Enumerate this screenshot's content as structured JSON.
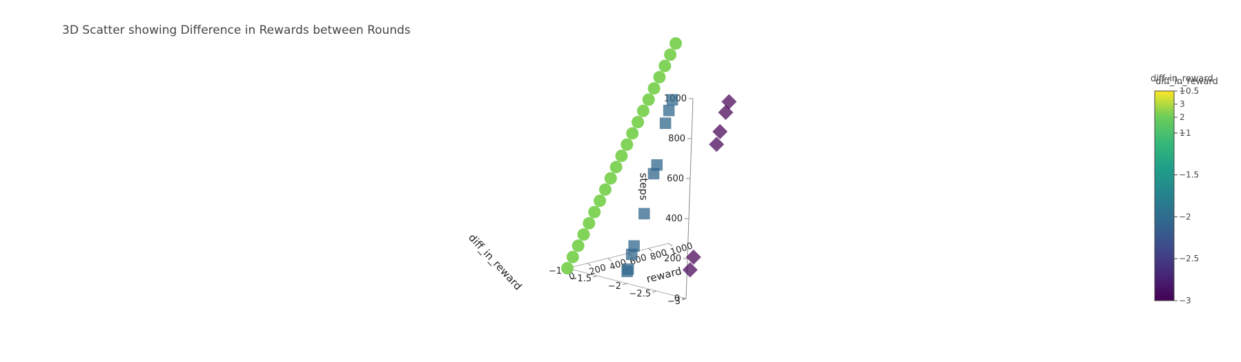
{
  "chart_data": {
    "type": "scatter3d",
    "title": "3D Scatter showing Difference in Rewards between Rounds",
    "axes": {
      "x": {
        "title": "reward",
        "ticks": [
          "0",
          "200",
          "400",
          "600",
          "800",
          "1000"
        ],
        "range": [
          0,
          1000
        ]
      },
      "y": {
        "title": "diff_in_reward",
        "ticks": [
          "−3",
          "−2.5",
          "−2",
          "−1.5",
          "−1"
        ],
        "range": [
          -3,
          -1
        ]
      },
      "z": {
        "title": "steps",
        "ticks": [
          "0",
          "200",
          "400",
          "600",
          "800",
          "1000"
        ],
        "range": [
          0,
          1000
        ]
      }
    },
    "colorscale": "Viridis",
    "colorbars": [
      {
        "title": "diff_in_reward",
        "range": [
          -3,
          -0.5
        ],
        "ticks": [
          {
            "value": -0.5,
            "label": "−0.5"
          },
          {
            "value": -1,
            "label": "−1"
          },
          {
            "value": -1.5,
            "label": "−1.5"
          },
          {
            "value": -2,
            "label": "−2"
          },
          {
            "value": -2.5,
            "label": "−2.5"
          },
          {
            "value": -3,
            "label": "−3"
          }
        ]
      },
      {
        "title": "diff_in_reward",
        "ticks_upper": [
          "1",
          "3",
          "2",
          "1"
        ]
      }
    ],
    "series": [
      {
        "marker": "circle",
        "color": "#7ad151",
        "note": "diff_in_reward = -1",
        "points": [
          [
            0,
            -1,
            0
          ],
          [
            50,
            -1,
            50
          ],
          [
            100,
            -1,
            100
          ],
          [
            150,
            -1,
            150
          ],
          [
            200,
            -1,
            200
          ],
          [
            250,
            -1,
            250
          ],
          [
            300,
            -1,
            300
          ],
          [
            350,
            -1,
            350
          ],
          [
            400,
            -1,
            400
          ],
          [
            450,
            -1,
            450
          ],
          [
            500,
            -1,
            500
          ],
          [
            550,
            -1,
            550
          ],
          [
            600,
            -1,
            600
          ],
          [
            650,
            -1,
            650
          ],
          [
            700,
            -1,
            700
          ],
          [
            750,
            -1,
            750
          ],
          [
            800,
            -1,
            800
          ],
          [
            850,
            -1,
            850
          ],
          [
            900,
            -1,
            900
          ],
          [
            950,
            -1,
            950
          ],
          [
            1000,
            -1,
            1000
          ]
        ]
      },
      {
        "marker": "square",
        "color": "#31688e",
        "note": "diff_in_reward = -2",
        "points": [
          [
            0,
            -2,
            60
          ],
          [
            10,
            -2,
            70
          ],
          [
            40,
            -2,
            140
          ],
          [
            60,
            -2,
            180
          ],
          [
            150,
            -2,
            330
          ],
          [
            230,
            -2,
            520
          ],
          [
            260,
            -2,
            560
          ],
          [
            330,
            -2,
            760
          ],
          [
            360,
            -2,
            820
          ],
          [
            390,
            -2,
            870
          ]
        ]
      },
      {
        "marker": "diamond",
        "color": "#440154",
        "note": "diff_in_reward = -3",
        "points": [
          [
            30,
            -3,
            140
          ],
          [
            60,
            -3,
            200
          ],
          [
            250,
            -3,
            740
          ],
          [
            280,
            -3,
            800
          ],
          [
            330,
            -3,
            890
          ],
          [
            360,
            -3,
            940
          ]
        ]
      }
    ]
  }
}
